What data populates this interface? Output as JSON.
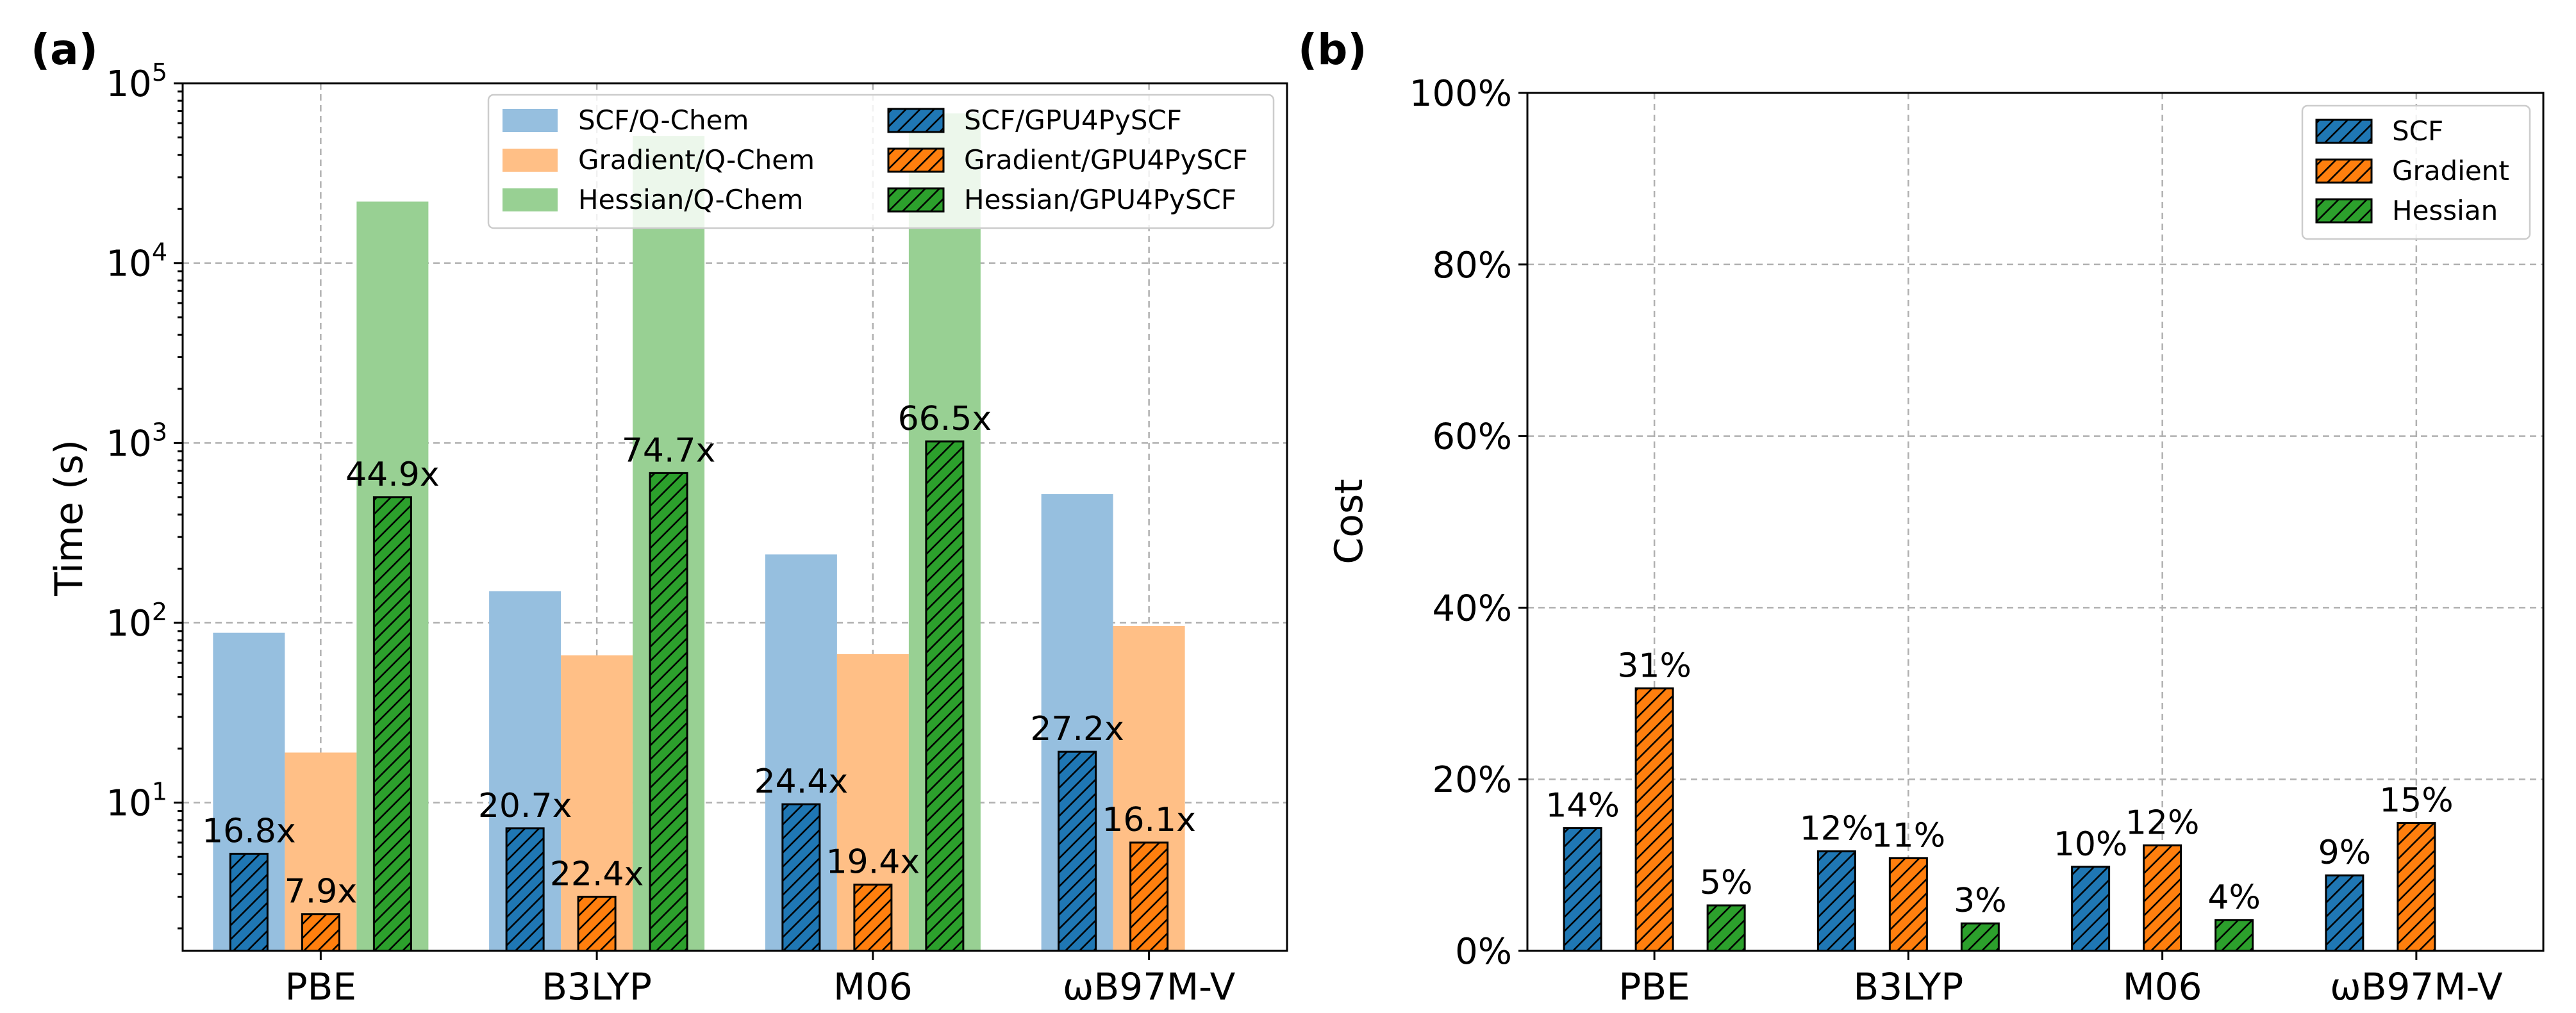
{
  "chart_data": [
    {
      "type": "bar",
      "panel_label": "(a)",
      "ylabel": "Time (s)",
      "yscale": "log",
      "ylim": [
        1.5,
        100000
      ],
      "ytick_bases": [
        "10",
        "10",
        "10",
        "10",
        "10"
      ],
      "ytick_exponents": [
        "1",
        "2",
        "3",
        "4",
        "5"
      ],
      "categories": [
        "PBE",
        "B3LYP",
        "M06",
        "ωB97M-V"
      ],
      "series": [
        {
          "name": "SCF/Q-Chem",
          "color": "#96bfdf",
          "hatch": false,
          "values": [
            88,
            150,
            240,
            520
          ]
        },
        {
          "name": "SCF/GPU4PySCF",
          "color": "#1f77b4",
          "hatch": true,
          "values": [
            5.2,
            7.2,
            9.8,
            19.2
          ]
        },
        {
          "name": "Gradient/Q-Chem",
          "color": "#ffbf86",
          "hatch": false,
          "values": [
            19,
            66,
            67,
            96
          ]
        },
        {
          "name": "Gradient/GPU4PySCF",
          "color": "#ff7f0e",
          "hatch": true,
          "values": [
            2.4,
            3.0,
            3.5,
            6.0
          ]
        },
        {
          "name": "Hessian/Q-Chem",
          "color": "#98d093",
          "hatch": false,
          "values": [
            22000,
            51000,
            68000,
            null
          ]
        },
        {
          "name": "Hessian/GPU4PySCF",
          "color": "#2ca02c",
          "hatch": true,
          "values": [
            500,
            680,
            1020,
            null
          ]
        }
      ],
      "speedup_labels": {
        "scf": [
          "16.8x",
          "20.7x",
          "24.4x",
          "27.2x"
        ],
        "gradient": [
          "7.9x",
          "22.4x",
          "19.4x",
          "16.1x"
        ],
        "hessian": [
          "44.9x",
          "74.7x",
          "66.5x",
          null
        ]
      },
      "legend_placement": "top-center",
      "grid": true
    },
    {
      "type": "bar",
      "panel_label": "(b)",
      "ylabel": "Cost",
      "ylim": [
        0,
        100
      ],
      "yticks": [
        "0%",
        "20%",
        "40%",
        "60%",
        "80%",
        "100%"
      ],
      "categories": [
        "PBE",
        "B3LYP",
        "M06",
        "ωB97M-V"
      ],
      "series": [
        {
          "name": "SCF",
          "color": "#1f77b4",
          "hatch": true,
          "values": [
            14.3,
            11.6,
            9.8,
            8.8
          ],
          "labels": [
            "14%",
            "12%",
            "10%",
            "9%"
          ]
        },
        {
          "name": "Gradient",
          "color": "#ff7f0e",
          "hatch": true,
          "values": [
            30.6,
            10.8,
            12.3,
            14.9
          ],
          "labels": [
            "31%",
            "11%",
            "12%",
            "15%"
          ]
        },
        {
          "name": "Hessian",
          "color": "#2ca02c",
          "hatch": true,
          "values": [
            5.3,
            3.2,
            3.6,
            null
          ],
          "labels": [
            "5%",
            "3%",
            "4%",
            null
          ]
        }
      ],
      "legend_placement": "top-right",
      "grid": true
    }
  ]
}
